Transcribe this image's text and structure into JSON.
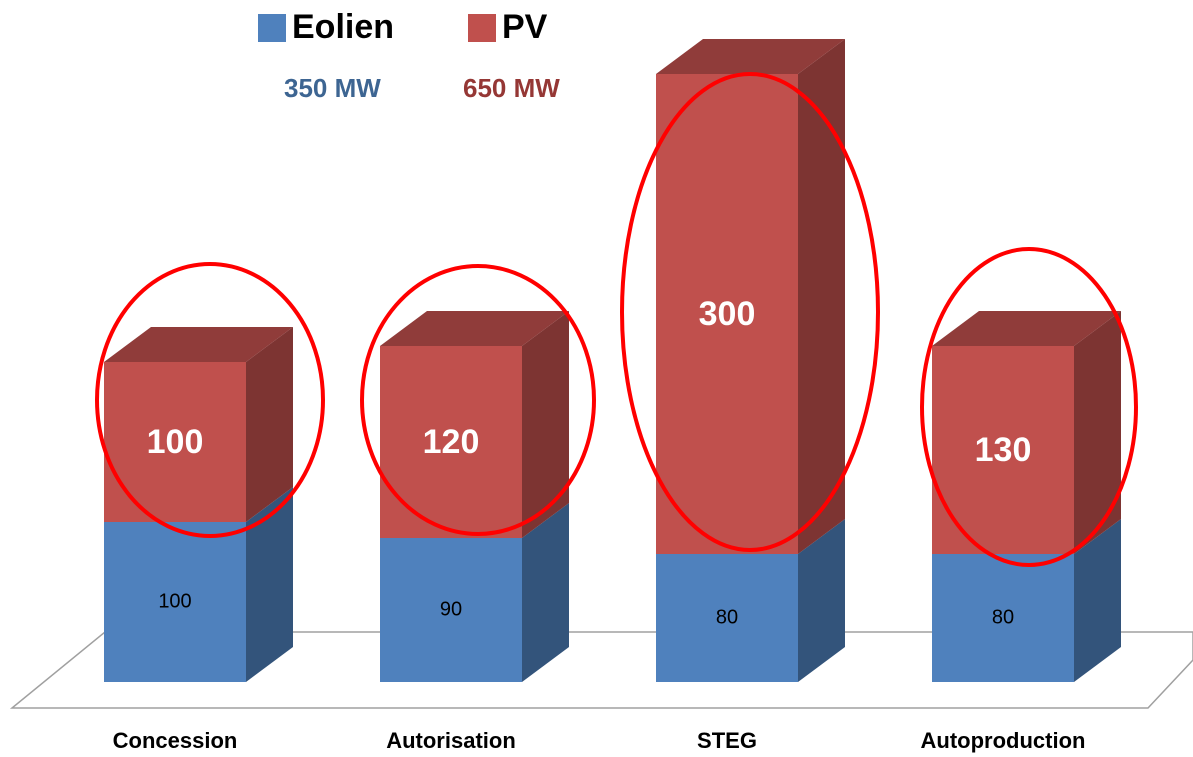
{
  "chart_data": {
    "type": "bar",
    "stacked": true,
    "three_d": true,
    "categories": [
      "Concession",
      "Autorisation",
      "STEG",
      "Autoproduction"
    ],
    "series": [
      {
        "name": "Eolien",
        "color": "#4f81bd",
        "values": [
          100,
          90,
          80,
          80
        ]
      },
      {
        "name": "PV",
        "color": "#c0504d",
        "values": [
          100,
          120,
          300,
          130
        ]
      }
    ],
    "annotations": [
      "350 MW",
      "650 MW"
    ]
  }
}
